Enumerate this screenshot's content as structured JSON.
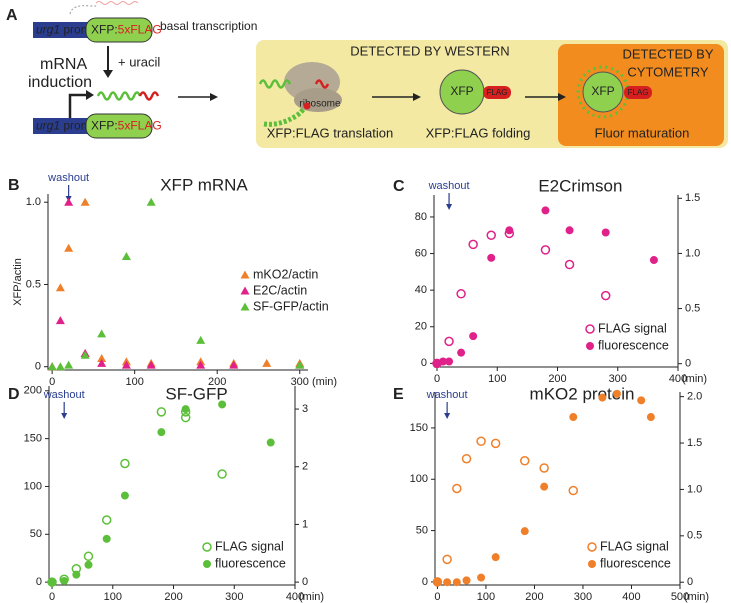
{
  "diagram": {
    "panel": "A",
    "promoter_name": "urg1",
    "promoter_word": "promoter",
    "construct_xfp": "XFP:",
    "construct_tag": "5xFLAG",
    "basal": "basal transcription",
    "induction": [
      "mRNA",
      "induction"
    ],
    "uracil": "+ uracil",
    "western": "DETECTED BY WESTERN",
    "ribosome": "ribosome",
    "translation": "XFP:FLAG translation",
    "xfp": "XFP",
    "flag": "FLAG",
    "folding": "XFP:FLAG folding",
    "cytometry": [
      "DETECTED BY",
      "CYTOMETRY"
    ],
    "maturation": "Fluor maturation"
  },
  "chart_data": [
    {
      "type": "scatter",
      "panel": "B",
      "title": "XFP mRNA",
      "ylabel": "XFP/actin",
      "xlabel": "(min)",
      "annotation": {
        "text": "washout",
        "x": 20
      },
      "xlim": [
        -5,
        310
      ],
      "xticks": [
        0,
        100,
        200,
        300
      ],
      "ylim": [
        -0.02,
        1.05
      ],
      "yticks": [
        0,
        0.5,
        {
          "value": 1,
          "label": "1.0"
        }
      ],
      "legend": "center right",
      "series": [
        {
          "name": "mKO2/actin",
          "color": "#f07f2a",
          "marker": "triangle",
          "x": [
            0,
            10,
            20,
            40,
            40,
            60,
            90,
            120,
            180,
            220,
            260,
            300
          ],
          "values": [
            0,
            0.48,
            0.72,
            1.0,
            0.08,
            0.05,
            0.03,
            0.02,
            0.03,
            0.02,
            0.02,
            0.02
          ]
        },
        {
          "name": "E2C/actin",
          "color": "#e0218a",
          "marker": "triangle",
          "x": [
            0,
            10,
            20,
            40,
            60,
            90,
            120,
            180,
            220,
            300
          ],
          "values": [
            0,
            0.28,
            1.0,
            0.08,
            0.02,
            0.01,
            0.01,
            0.01,
            0.01,
            0.01
          ]
        },
        {
          "name": "SF-GFP/actin",
          "color": "#5cbf3a",
          "marker": "triangle",
          "x": [
            0,
            10,
            20,
            40,
            60,
            90,
            120,
            180,
            300
          ],
          "values": [
            0,
            0,
            0.01,
            0.07,
            0.2,
            0.67,
            1.0,
            0.16,
            0.01
          ]
        }
      ]
    },
    {
      "type": "scatter",
      "panel": "C",
      "title": "E2Crimson",
      "xlabel": "(min)",
      "annotation": {
        "text": "washout",
        "x": 20
      },
      "xlim": [
        -5,
        400
      ],
      "xticks": [
        0,
        100,
        200,
        300,
        400
      ],
      "ylim": [
        -2,
        92
      ],
      "yticks": [
        0,
        20,
        40,
        60,
        80
      ],
      "y2lim": [
        -0.03,
        1.53
      ],
      "y2ticks": [
        0,
        0.5,
        {
          "value": 1,
          "label": "1.0"
        },
        1.5
      ],
      "legend": "lower right",
      "series": [
        {
          "name": "FLAG signal",
          "color": "#e0218a",
          "marker": "open-circle",
          "x": [
            0,
            20,
            40,
            60,
            90,
            120,
            180,
            220,
            280
          ],
          "values": [
            0,
            12,
            38,
            65,
            70,
            71,
            62,
            54,
            37
          ]
        },
        {
          "name": "fluorescence",
          "color": "#e0218a",
          "marker": "circle",
          "axis": "y2",
          "x": [
            0,
            10,
            20,
            40,
            60,
            90,
            120,
            180,
            220,
            280,
            360
          ],
          "values": [
            0,
            0.02,
            0.02,
            0.1,
            0.25,
            0.96,
            1.21,
            1.39,
            1.21,
            1.19,
            0.94
          ]
        }
      ]
    },
    {
      "type": "scatter",
      "panel": "D",
      "title": "SF-GFP",
      "xlabel": "(min)",
      "annotation": {
        "text": "washout",
        "x": 20
      },
      "xlim": [
        -5,
        400
      ],
      "xticks": [
        0,
        100,
        200,
        300,
        400
      ],
      "ylim": [
        -3,
        205
      ],
      "yticks": [
        0,
        50,
        100,
        150,
        200
      ],
      "y2lim": [
        -0.05,
        3.4
      ],
      "y2ticks": [
        0,
        1,
        2,
        3
      ],
      "legend": "lower right",
      "series": [
        {
          "name": "FLAG signal",
          "color": "#5cbf3a",
          "marker": "open-circle",
          "x": [
            0,
            20,
            40,
            60,
            90,
            120,
            180,
            220,
            220,
            280
          ],
          "values": [
            0,
            3,
            14,
            27,
            65,
            124,
            178,
            172,
            178,
            113
          ]
        },
        {
          "name": "fluorescence",
          "color": "#5cbf3a",
          "marker": "circle",
          "axis": "y2",
          "x": [
            0,
            20,
            40,
            60,
            90,
            120,
            180,
            220,
            280,
            360
          ],
          "values": [
            0,
            0.02,
            0.13,
            0.3,
            0.75,
            1.5,
            2.6,
            3.0,
            3.08,
            2.42
          ]
        }
      ]
    },
    {
      "type": "scatter",
      "panel": "E",
      "title": "mKO2 protein",
      "xlabel": "(min)",
      "annotation": {
        "text": "washout",
        "x": 20
      },
      "xlim": [
        -5,
        500
      ],
      "xticks": [
        0,
        100,
        200,
        300,
        400,
        500
      ],
      "ylim": [
        -3,
        185
      ],
      "yticks": [
        0,
        50,
        100,
        150
      ],
      "y2lim": [
        -0.03,
        2.05
      ],
      "y2ticks": [
        0,
        0.5,
        {
          "value": 1,
          "label": "1.0"
        },
        1.5,
        {
          "value": 2,
          "label": "2.0"
        }
      ],
      "legend": "lower right",
      "series": [
        {
          "name": "FLAG signal",
          "color": "#f07f2a",
          "marker": "open-circle",
          "x": [
            0,
            20,
            40,
            60,
            90,
            120,
            180,
            220,
            280
          ],
          "values": [
            0,
            22,
            91,
            120,
            137,
            135,
            118,
            111,
            89
          ]
        },
        {
          "name": "fluorescence",
          "color": "#f07f2a",
          "marker": "circle",
          "axis": "y2",
          "x": [
            0,
            20,
            40,
            60,
            90,
            120,
            180,
            220,
            280,
            340,
            370,
            420,
            440
          ],
          "values": [
            0,
            0,
            0,
            0.02,
            0.05,
            0.27,
            0.55,
            1.03,
            1.78,
            1.99,
            2.03,
            1.96,
            1.78
          ]
        }
      ]
    }
  ]
}
